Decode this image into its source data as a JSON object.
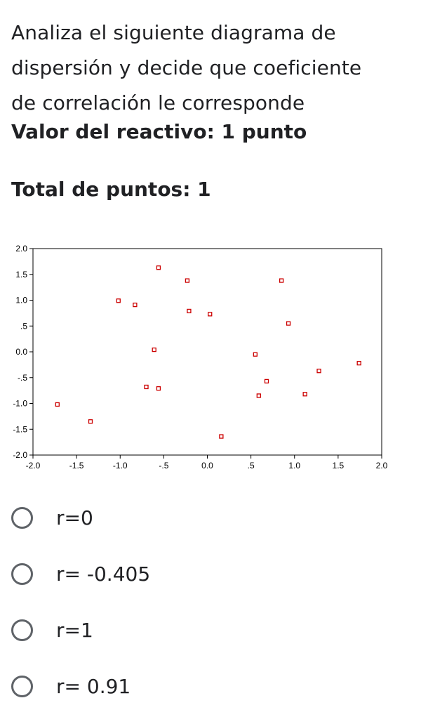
{
  "question": {
    "line1": "Analiza el siguiente diagrama de",
    "line2": "dispersión y decide que coeficiente",
    "line3": "de correlación le corresponde",
    "points_value": "Valor del reactivo: 1 punto",
    "points_total": "Total de puntos: 1"
  },
  "options": [
    {
      "label": "r=0"
    },
    {
      "label": "r= -0.405"
    },
    {
      "label": "r=1"
    },
    {
      "label": "r= 0.91"
    }
  ],
  "chart_data": {
    "type": "scatter",
    "title": "",
    "xlabel": "",
    "ylabel": "",
    "xlim": [
      -2.0,
      2.0
    ],
    "ylim": [
      -2.0,
      2.0
    ],
    "x_ticks": [
      "-2.0",
      "-1.5",
      "-1.0",
      "-.5",
      "0.0",
      ".5",
      "1.0",
      "1.5",
      "2.0"
    ],
    "y_ticks": [
      "2.0",
      "1.5",
      "1.0",
      ".5",
      "0.0",
      "-.5",
      "-1.0",
      "-1.5",
      "-2.0"
    ],
    "x_tick_values": [
      -2.0,
      -1.5,
      -1.0,
      -0.5,
      0.0,
      0.5,
      1.0,
      1.5,
      2.0
    ],
    "y_tick_values": [
      2.0,
      1.5,
      1.0,
      0.5,
      0.0,
      -0.5,
      -1.0,
      -1.5,
      -2.0
    ],
    "grid": false,
    "marker_color": "#cc0000",
    "points": [
      {
        "x": -1.72,
        "y": -1.02
      },
      {
        "x": -1.34,
        "y": -1.35
      },
      {
        "x": -1.02,
        "y": 0.99
      },
      {
        "x": -0.83,
        "y": 0.91
      },
      {
        "x": -0.7,
        "y": -0.68
      },
      {
        "x": -0.61,
        "y": 0.04
      },
      {
        "x": -0.56,
        "y": -0.71
      },
      {
        "x": -0.56,
        "y": 1.63
      },
      {
        "x": -0.23,
        "y": 1.38
      },
      {
        "x": -0.21,
        "y": 0.79
      },
      {
        "x": 0.03,
        "y": 0.73
      },
      {
        "x": 0.16,
        "y": -1.64
      },
      {
        "x": 0.55,
        "y": -0.05
      },
      {
        "x": 0.59,
        "y": -0.85
      },
      {
        "x": 0.68,
        "y": -0.57
      },
      {
        "x": 0.85,
        "y": 1.38
      },
      {
        "x": 0.93,
        "y": 0.55
      },
      {
        "x": 1.12,
        "y": -0.82
      },
      {
        "x": 1.28,
        "y": -0.37
      },
      {
        "x": 1.74,
        "y": -0.22
      }
    ]
  }
}
